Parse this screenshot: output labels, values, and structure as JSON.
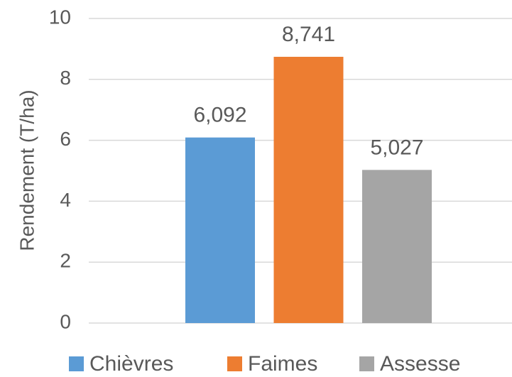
{
  "chart_data": {
    "type": "bar",
    "y_label": "Rendement  (T/ha)",
    "categories": [
      "Chièvres",
      "Faimes",
      "Assesse"
    ],
    "values": [
      6.092,
      8.741,
      5.027
    ],
    "value_labels": [
      "6,092",
      "8,741",
      "5,027"
    ],
    "colors": [
      "#5b9bd5",
      "#ed7d31",
      "#a5a5a5"
    ],
    "ylim": [
      0,
      10
    ],
    "yticks": [
      0,
      2,
      4,
      6,
      8,
      10
    ],
    "grid": true,
    "legend": "bottom"
  }
}
